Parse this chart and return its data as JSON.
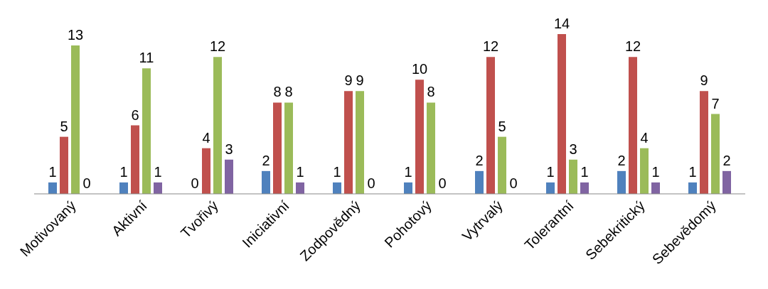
{
  "chart_data": {
    "type": "bar",
    "categories": [
      "Motivovaný",
      "Aktivní",
      "Tvořivý",
      "Iniciativní",
      "Zodpovědný",
      "Pohotový",
      "Vytrvalý",
      "Tolerantní",
      "Sebekritický",
      "Sebevědomý"
    ],
    "series": [
      {
        "color": "#4f81bd",
        "values": [
          1,
          1,
          0,
          2,
          1,
          1,
          2,
          1,
          2,
          1
        ]
      },
      {
        "color": "#c0504d",
        "values": [
          5,
          6,
          4,
          8,
          9,
          10,
          12,
          14,
          12,
          9
        ]
      },
      {
        "color": "#9bbb59",
        "values": [
          13,
          11,
          12,
          8,
          9,
          8,
          5,
          3,
          4,
          7
        ]
      },
      {
        "color": "#8064a2",
        "values": [
          0,
          1,
          3,
          1,
          0,
          0,
          0,
          1,
          1,
          2
        ]
      }
    ],
    "data_labels": true,
    "grid": false,
    "legend": false
  }
}
